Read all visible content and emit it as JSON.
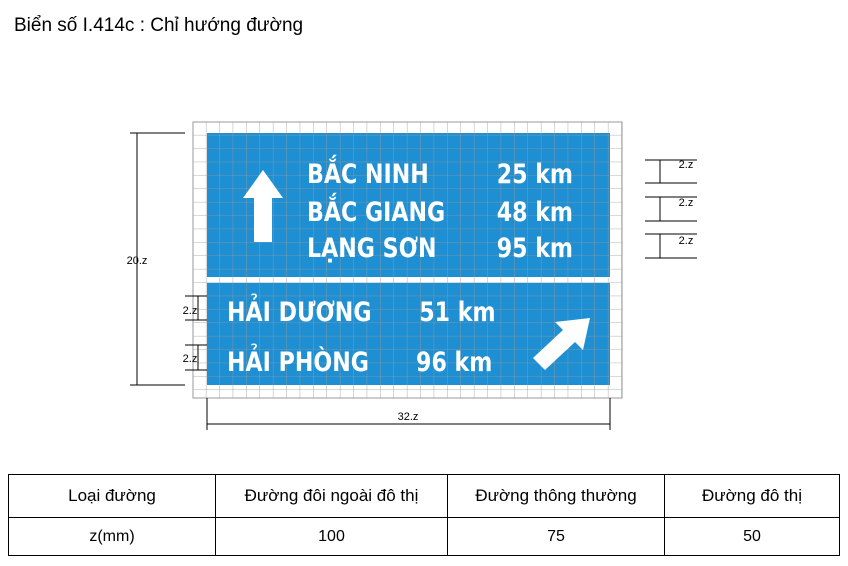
{
  "title": "Biển số I.414c : Chỉ hướng đường",
  "sign": {
    "top_lines": [
      {
        "name": "BẮC NINH",
        "distance": "25 km"
      },
      {
        "name": "BẮC GIANG",
        "distance": "48 km"
      },
      {
        "name": "LẠNG SƠN",
        "distance": "95 km"
      }
    ],
    "bottom_lines": [
      {
        "name": "HẢI DƯƠNG",
        "distance": "51 km"
      },
      {
        "name": "HẢI PHÒNG",
        "distance": "96 km"
      }
    ]
  },
  "dimensions": {
    "height": "20.z",
    "width": "32.z",
    "right_spacing": [
      "2.z",
      "2.z",
      "2.z"
    ],
    "left_spacing": [
      "2.z",
      "2.z"
    ]
  },
  "table": {
    "header": [
      "Loại đường",
      "Đường đôi ngoài đô thị",
      "Đường thông thường",
      "Đường đô thị"
    ],
    "rows": [
      [
        "z(mm)",
        "100",
        "75",
        "50"
      ]
    ]
  }
}
